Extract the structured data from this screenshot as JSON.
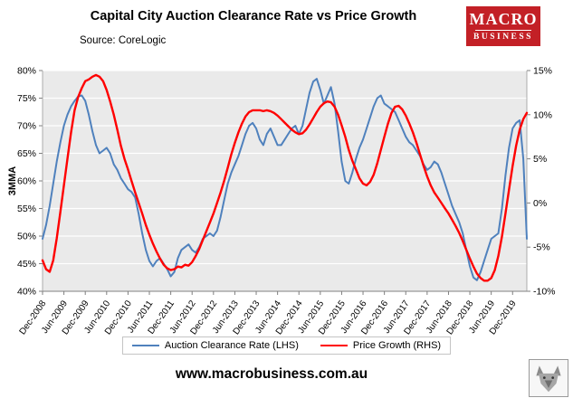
{
  "header": {
    "title": "Capital City Auction Clearance Rate vs Price Growth",
    "source": "Source: CoreLogic"
  },
  "logo": {
    "line1": "MACRO",
    "line2": "BUSINESS",
    "bg_color": "#c32026"
  },
  "icons": {
    "brand_mark": "wolf-head-icon"
  },
  "footer": {
    "url": "www.macrobusiness.com.au"
  },
  "chart_data": {
    "type": "line",
    "title": "Capital City Auction Clearance Rate vs Price Growth",
    "subtitle": "Source: CoreLogic",
    "ylabel_left": "3MMA",
    "plot_bg": "#EAEAEA",
    "grid_color": "#FFFFFF",
    "grid": "horizontal-only",
    "legend_position": "bottom",
    "left_axis": {
      "range": [
        40,
        80
      ],
      "tick_step": 5,
      "tick_labels": [
        "80%",
        "75%",
        "70%",
        "65%",
        "60%",
        "55%",
        "50%",
        "45%",
        "40%"
      ]
    },
    "right_axis": {
      "range": [
        -10,
        15
      ],
      "tick_step": 5,
      "tick_labels": [
        "15%",
        "10%",
        "5%",
        "0%",
        "-5%",
        "-10%"
      ]
    },
    "x_axis": {
      "tick_labels": [
        "Dec-2008",
        "Jun-2009",
        "Dec-2009",
        "Jun-2010",
        "Dec-2010",
        "Jun-2011",
        "Dec-2011",
        "Jun-2012",
        "Dec-2012",
        "Jun-2013",
        "Dec-2013",
        "Jun-2014",
        "Dec-2014",
        "Jun-2015",
        "Dec-2015",
        "Jun-2016",
        "Dec-2016",
        "Jun-2017",
        "Dec-2017",
        "Jun-2018",
        "Dec-2018",
        "Jun-2019",
        "Dec-2019"
      ],
      "months_per_tick": 6,
      "points_total": 137,
      "start": "Dec-2008"
    },
    "series": [
      {
        "name": "Auction Clearance Rate (LHS)",
        "axis": "left",
        "color": "#4F81BD",
        "width": 2,
        "values": [
          49.5,
          52,
          55.5,
          59.5,
          63.5,
          67,
          70,
          72,
          73.5,
          74.5,
          75.3,
          75.5,
          74.5,
          72,
          69,
          66.5,
          65,
          65.5,
          66,
          65,
          63,
          62,
          60.5,
          59.5,
          58.5,
          58,
          57,
          54,
          50.5,
          47.5,
          45.5,
          44.5,
          45.5,
          46,
          45,
          44,
          42.7,
          43.5,
          46,
          47.5,
          48,
          48.5,
          47.5,
          47,
          48,
          49.5,
          50,
          50.5,
          50,
          51,
          53.5,
          56.5,
          59.5,
          61.5,
          63,
          64.5,
          66.5,
          68.5,
          70,
          70.5,
          69.5,
          67.5,
          66.5,
          68.5,
          69.5,
          68,
          66.5,
          66.5,
          67.5,
          68.5,
          69.5,
          70,
          68.5,
          70,
          73,
          76,
          78,
          78.5,
          76.5,
          74,
          75.5,
          77,
          74,
          69,
          63.5,
          60,
          59.5,
          61.5,
          64,
          66,
          67.5,
          69.5,
          71.5,
          73.5,
          75,
          75.5,
          74,
          73.5,
          73,
          72.5,
          71,
          69.5,
          68,
          67,
          66.5,
          65.5,
          64.5,
          63,
          62,
          62.5,
          63.5,
          63,
          61.5,
          59.5,
          57.5,
          55.5,
          54,
          52.5,
          50.5,
          47.5,
          44.5,
          42.5,
          42,
          43.5,
          45.5,
          47.5,
          49.5,
          50,
          50.5,
          55,
          61,
          66,
          69.5,
          70.5,
          71,
          64,
          49.5
        ]
      },
      {
        "name": "Price Growth (RHS)",
        "axis": "right",
        "color": "#FF0000",
        "width": 2.4,
        "values": [
          -6.5,
          -7.5,
          -7.8,
          -6.5,
          -4,
          -1,
          2,
          5,
          8,
          10.5,
          12,
          13,
          13.8,
          14,
          14.3,
          14.5,
          14.3,
          13.8,
          12.8,
          11.5,
          10,
          8.3,
          6.5,
          5,
          3.8,
          2.5,
          1.2,
          0,
          -1.2,
          -2.5,
          -3.6,
          -4.6,
          -5.5,
          -6.3,
          -7,
          -7.4,
          -7.6,
          -7.5,
          -7.2,
          -7.3,
          -7,
          -7.1,
          -6.7,
          -6,
          -5.2,
          -4.2,
          -3.2,
          -2.2,
          -1.2,
          0,
          1.2,
          2.5,
          4,
          5.5,
          6.8,
          8,
          9,
          9.8,
          10.3,
          10.5,
          10.5,
          10.5,
          10.4,
          10.5,
          10.4,
          10.2,
          9.9,
          9.5,
          9.1,
          8.7,
          8.3,
          8,
          7.8,
          7.9,
          8.3,
          8.9,
          9.6,
          10.3,
          10.9,
          11.3,
          11.5,
          11.4,
          10.9,
          10,
          8.8,
          7.5,
          6,
          4.8,
          3.8,
          2.8,
          2.2,
          2,
          2.4,
          3.2,
          4.5,
          6,
          7.5,
          9,
          10.2,
          10.9,
          11,
          10.6,
          9.9,
          9,
          8,
          6.8,
          5.5,
          4.2,
          3,
          2,
          1.2,
          0.6,
          0,
          -0.6,
          -1.2,
          -1.9,
          -2.6,
          -3.4,
          -4.3,
          -5.3,
          -6.3,
          -7.2,
          -8,
          -8.5,
          -8.8,
          -8.8,
          -8.5,
          -7.6,
          -6,
          -3.8,
          -1.2,
          1.5,
          4.2,
          6.5,
          8.3,
          9.5,
          10.2
        ]
      }
    ]
  }
}
